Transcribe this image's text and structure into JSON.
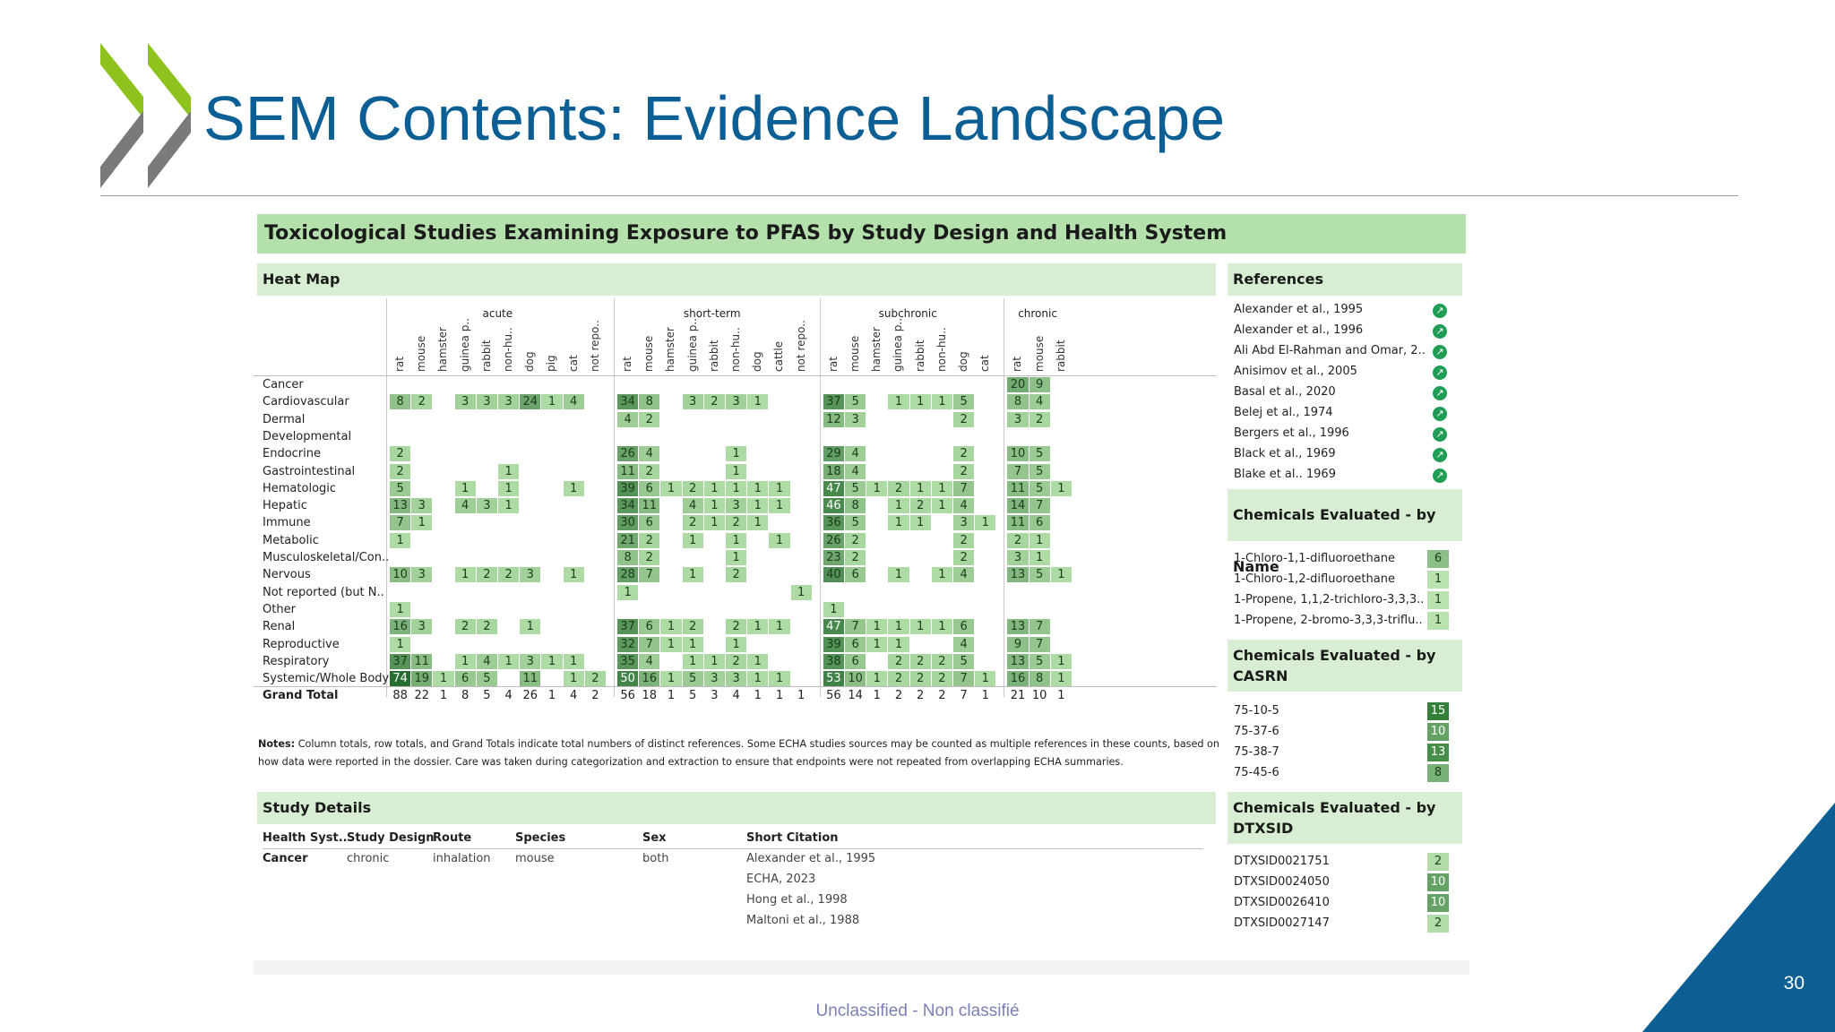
{
  "slide": {
    "title": "SEM Contents: Evidence Landscape",
    "page_number": "30",
    "classification": "Unclassified - Non classifié",
    "colors": {
      "title": "#0b5f95",
      "chevron_green": "#8dc21f",
      "chevron_grey": "#7a7a7a",
      "corner": "#0b5f95"
    }
  },
  "dashboard": {
    "title": "Toxicological Studies Examining Exposure to PFAS by Study Design and Health System",
    "heatmap_header": "Heat Map",
    "references_header": "References",
    "chem_name_header": "Chemicals Evaluated - by Name",
    "chem_casrn_header": "Chemicals Evaluated - by CASRN",
    "chem_dtxsid_header": "Chemicals Evaluated - by DTXSID",
    "study_details_header": "Study Details",
    "notes_label": "Notes:",
    "notes_text": "Column totals, row totals, and Grand Totals indicate total numbers of distinct references. Some ECHA studies sources may be counted as multiple references in these counts, based on how data were reported in the dossier. Care was taken during categorization and extraction to ensure that endpoints were not repeated from overlapping ECHA summaries."
  },
  "heatmap": {
    "groups": [
      {
        "label": "acute",
        "species": [
          "rat",
          "mouse",
          "hamster",
          "guinea p..",
          "rabbit",
          "non-hu..",
          "dog",
          "pig",
          "cat",
          "not repo.."
        ]
      },
      {
        "label": "short-term",
        "species": [
          "rat",
          "mouse",
          "hamster",
          "guinea p..",
          "rabbit",
          "non-hu..",
          "dog",
          "cattle",
          "not repo.."
        ]
      },
      {
        "label": "subchronic",
        "species": [
          "rat",
          "mouse",
          "hamster",
          "guinea p..",
          "rabbit",
          "non-hu..",
          "dog",
          "cat"
        ]
      },
      {
        "label": "chronic",
        "species": [
          "rat",
          "mouse",
          "rabbit"
        ]
      }
    ],
    "rows": [
      {
        "label": "Cancer",
        "values": [
          null,
          null,
          null,
          null,
          null,
          null,
          null,
          null,
          null,
          null,
          null,
          null,
          null,
          null,
          null,
          null,
          null,
          null,
          null,
          null,
          null,
          null,
          null,
          null,
          null,
          null,
          null,
          20,
          9,
          null
        ]
      },
      {
        "label": "Cardiovascular",
        "values": [
          8,
          2,
          null,
          3,
          3,
          3,
          24,
          1,
          4,
          null,
          34,
          8,
          null,
          3,
          2,
          3,
          1,
          null,
          null,
          37,
          5,
          null,
          1,
          1,
          1,
          5,
          null,
          8,
          4,
          null
        ]
      },
      {
        "label": "Dermal",
        "values": [
          null,
          null,
          null,
          null,
          null,
          null,
          null,
          null,
          null,
          null,
          4,
          2,
          null,
          null,
          null,
          null,
          null,
          null,
          null,
          12,
          3,
          null,
          null,
          null,
          null,
          2,
          null,
          3,
          2,
          null
        ]
      },
      {
        "label": "Developmental",
        "values": [
          null,
          null,
          null,
          null,
          null,
          null,
          null,
          null,
          null,
          null,
          null,
          null,
          null,
          null,
          null,
          null,
          null,
          null,
          null,
          null,
          null,
          null,
          null,
          null,
          null,
          null,
          null,
          null,
          null,
          null
        ]
      },
      {
        "label": "Endocrine",
        "values": [
          2,
          null,
          null,
          null,
          null,
          null,
          null,
          null,
          null,
          null,
          26,
          4,
          null,
          null,
          null,
          1,
          null,
          null,
          null,
          29,
          4,
          null,
          null,
          null,
          null,
          2,
          null,
          10,
          5,
          null
        ]
      },
      {
        "label": "Gastrointestinal",
        "values": [
          2,
          null,
          null,
          null,
          null,
          1,
          null,
          null,
          null,
          null,
          11,
          2,
          null,
          null,
          null,
          1,
          null,
          null,
          null,
          18,
          4,
          null,
          null,
          null,
          null,
          2,
          null,
          7,
          5,
          null
        ]
      },
      {
        "label": "Hematologic",
        "values": [
          5,
          null,
          null,
          1,
          null,
          1,
          null,
          null,
          1,
          null,
          39,
          6,
          1,
          2,
          1,
          1,
          1,
          1,
          null,
          47,
          5,
          1,
          2,
          1,
          1,
          7,
          null,
          11,
          5,
          1
        ]
      },
      {
        "label": "Hepatic",
        "values": [
          13,
          3,
          null,
          4,
          3,
          1,
          null,
          null,
          null,
          null,
          34,
          11,
          null,
          4,
          1,
          3,
          1,
          1,
          null,
          46,
          8,
          null,
          1,
          2,
          1,
          4,
          null,
          14,
          7,
          null
        ]
      },
      {
        "label": "Immune",
        "values": [
          7,
          1,
          null,
          null,
          null,
          null,
          null,
          null,
          null,
          null,
          30,
          6,
          null,
          2,
          1,
          2,
          1,
          null,
          null,
          36,
          5,
          null,
          1,
          1,
          null,
          3,
          1,
          11,
          6,
          null
        ]
      },
      {
        "label": "Metabolic",
        "values": [
          1,
          null,
          null,
          null,
          null,
          null,
          null,
          null,
          null,
          null,
          21,
          2,
          null,
          1,
          null,
          1,
          null,
          1,
          null,
          26,
          2,
          null,
          null,
          null,
          null,
          2,
          null,
          2,
          1,
          null
        ]
      },
      {
        "label": "Musculoskeletal/Con..",
        "values": [
          null,
          null,
          null,
          null,
          null,
          null,
          null,
          null,
          null,
          null,
          8,
          2,
          null,
          null,
          null,
          1,
          null,
          null,
          null,
          23,
          2,
          null,
          null,
          null,
          null,
          2,
          null,
          3,
          1,
          null
        ]
      },
      {
        "label": "Nervous",
        "values": [
          10,
          3,
          null,
          1,
          2,
          2,
          3,
          null,
          1,
          null,
          28,
          7,
          null,
          1,
          null,
          2,
          null,
          null,
          null,
          40,
          6,
          null,
          1,
          null,
          1,
          4,
          null,
          13,
          5,
          1
        ]
      },
      {
        "label": "Not reported (but N..",
        "values": [
          null,
          null,
          null,
          null,
          null,
          null,
          null,
          null,
          null,
          null,
          1,
          null,
          null,
          null,
          null,
          null,
          null,
          null,
          1,
          null,
          null,
          null,
          null,
          null,
          null,
          null,
          null,
          null,
          null,
          null
        ]
      },
      {
        "label": "Other",
        "values": [
          1,
          null,
          null,
          null,
          null,
          null,
          null,
          null,
          null,
          null,
          null,
          null,
          null,
          null,
          null,
          null,
          null,
          null,
          null,
          1,
          null,
          null,
          null,
          null,
          null,
          null,
          null,
          null,
          null,
          null
        ]
      },
      {
        "label": "Renal",
        "values": [
          16,
          3,
          null,
          2,
          2,
          null,
          1,
          null,
          null,
          null,
          37,
          6,
          1,
          2,
          null,
          2,
          1,
          1,
          null,
          47,
          7,
          1,
          1,
          1,
          1,
          6,
          null,
          13,
          7,
          null
        ]
      },
      {
        "label": "Reproductive",
        "values": [
          1,
          null,
          null,
          null,
          null,
          null,
          null,
          null,
          null,
          null,
          32,
          7,
          1,
          1,
          null,
          1,
          null,
          null,
          null,
          39,
          6,
          1,
          1,
          null,
          null,
          4,
          null,
          9,
          7,
          null
        ]
      },
      {
        "label": "Respiratory",
        "values": [
          37,
          11,
          null,
          1,
          4,
          1,
          3,
          1,
          1,
          null,
          35,
          4,
          null,
          1,
          1,
          2,
          1,
          null,
          null,
          38,
          6,
          null,
          2,
          2,
          2,
          5,
          null,
          13,
          5,
          1
        ]
      },
      {
        "label": "Systemic/Whole Body",
        "values": [
          74,
          19,
          1,
          6,
          5,
          null,
          11,
          null,
          1,
          2,
          50,
          16,
          1,
          5,
          3,
          3,
          1,
          1,
          null,
          53,
          10,
          1,
          2,
          2,
          2,
          7,
          1,
          16,
          8,
          1
        ]
      }
    ],
    "grand_total": {
      "label": "Grand Total",
      "values": [
        88,
        22,
        1,
        8,
        5,
        4,
        26,
        1,
        4,
        2,
        56,
        18,
        1,
        5,
        3,
        4,
        1,
        1,
        1,
        56,
        14,
        1,
        2,
        2,
        2,
        7,
        1,
        21,
        10,
        1
      ]
    }
  },
  "references": [
    "Alexander et al., 1995",
    "Alexander et al., 1996",
    "Ali Abd El-Rahman and Omar, 2..",
    "Anisimov et al., 2005",
    "Basal et al., 2020",
    "Belej et al., 1974",
    "Bergers et al., 1996",
    "Black et al., 1969",
    "Blake et al.. 1969"
  ],
  "chemicals_by_name": [
    {
      "name": "1-Chloro-1,1-difluoroethane",
      "count": 6
    },
    {
      "name": "1-Chloro-1,2-difluoroethane",
      "count": 1
    },
    {
      "name": "1-Propene, 1,1,2-trichloro-3,3,3..",
      "count": 1
    },
    {
      "name": "1-Propene, 2-bromo-3,3,3-triflu..",
      "count": 1
    }
  ],
  "chemicals_by_casrn": [
    {
      "name": "75-10-5",
      "count": 15
    },
    {
      "name": "75-37-6",
      "count": 10
    },
    {
      "name": "75-38-7",
      "count": 13
    },
    {
      "name": "75-45-6",
      "count": 8
    }
  ],
  "chemicals_by_dtxsid": [
    {
      "name": "DTXSID0021751",
      "count": 2
    },
    {
      "name": "DTXSID0024050",
      "count": 10
    },
    {
      "name": "DTXSID0026410",
      "count": 10
    },
    {
      "name": "DTXSID0027147",
      "count": 2
    }
  ],
  "study_details": {
    "headers": [
      "Health Syst..",
      "Study Design",
      "Route",
      "Species",
      "Sex",
      "Short Citation"
    ],
    "row": {
      "health_system": "Cancer",
      "study_design": "chronic",
      "route": "inhalation",
      "species": "mouse",
      "sex": "both"
    },
    "citations": [
      "Alexander et al., 1995",
      "ECHA, 2023",
      "Hong et al., 1998",
      "Maltoni et al., 1988"
    ]
  }
}
